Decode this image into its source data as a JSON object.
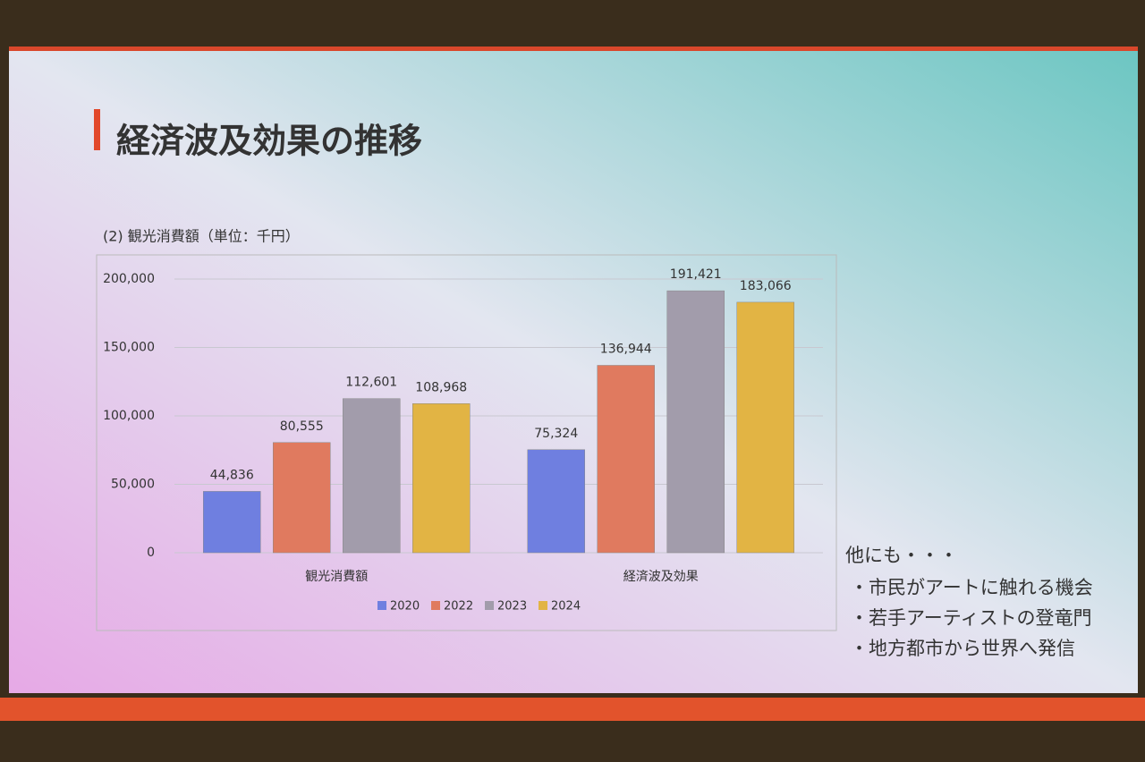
{
  "slide": {
    "title": "経済波及効果の推移",
    "notes": {
      "heading": "他にも・・・",
      "items": [
        "・市民がアートに触れる機会",
        "・若手アーティストの登竜門",
        "・地方都市から世界へ発信"
      ]
    }
  },
  "chart_data": {
    "type": "bar",
    "title": "(2) 観光消費額（単位：千円）",
    "categories": [
      "観光消費額",
      "経済波及効果"
    ],
    "series": [
      {
        "name": "2020",
        "color": "#6f7fe0",
        "values": [
          44836,
          75324
        ],
        "value_labels": [
          "44,836",
          "75,324"
        ]
      },
      {
        "name": "2022",
        "color": "#e07a5f",
        "values": [
          80555,
          136944
        ],
        "value_labels": [
          "80,555",
          "136,944"
        ]
      },
      {
        "name": "2023",
        "color": "#a29cab",
        "values": [
          112601,
          191421
        ],
        "value_labels": [
          "112,601",
          "191,421"
        ]
      },
      {
        "name": "2024",
        "color": "#e2b444",
        "values": [
          108968,
          183066
        ],
        "value_labels": [
          "108,968",
          "183,066"
        ]
      }
    ],
    "ylim": [
      0,
      200000
    ],
    "yticks": [
      0,
      {
        "value": 50000,
        "label": "50,000"
      },
      {
        "value": 100000,
        "label": "100,000"
      },
      {
        "value": 150000,
        "label": "150,000"
      },
      {
        "value": 200000,
        "label": "200,000"
      }
    ],
    "grid": true,
    "legend": "bottom"
  }
}
